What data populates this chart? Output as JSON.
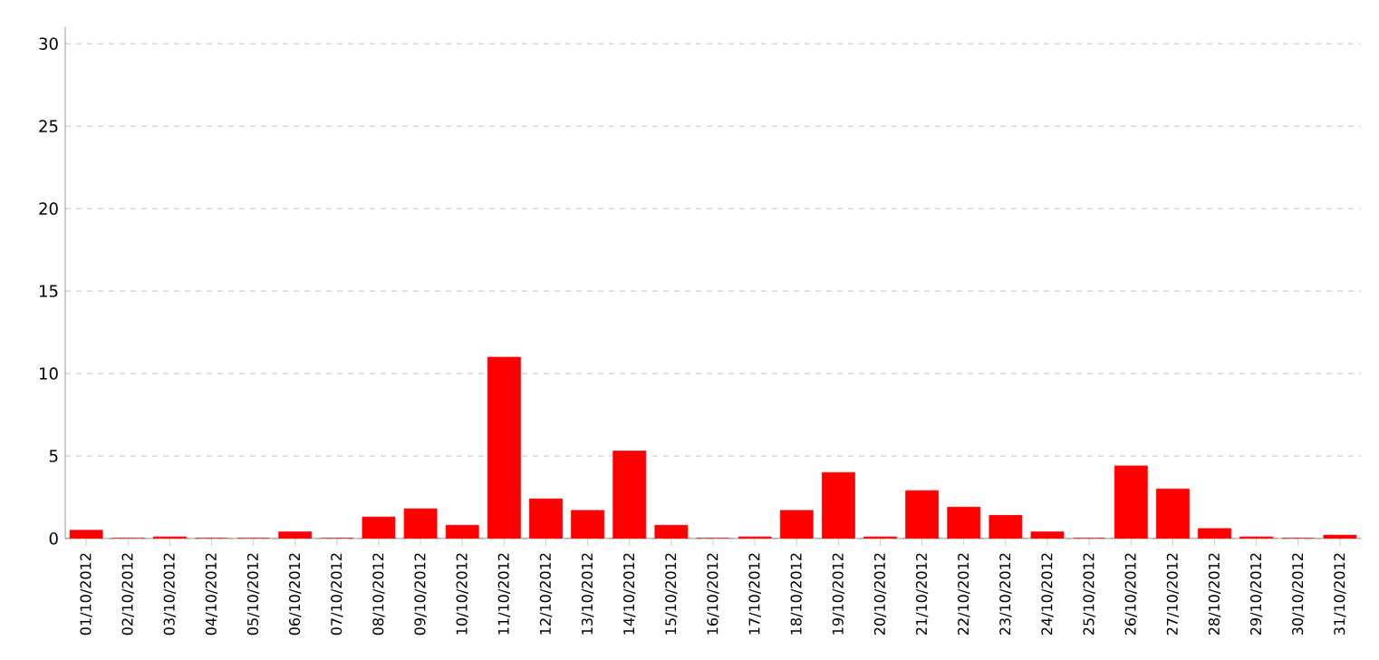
{
  "chart_data": {
    "type": "bar",
    "categories": [
      "01/10/2012",
      "02/10/2012",
      "03/10/2012",
      "04/10/2012",
      "05/10/2012",
      "06/10/2012",
      "07/10/2012",
      "08/10/2012",
      "09/10/2012",
      "10/10/2012",
      "11/10/2012",
      "12/10/2012",
      "13/10/2012",
      "14/10/2012",
      "15/10/2012",
      "16/10/2012",
      "17/10/2012",
      "18/10/2012",
      "19/10/2012",
      "20/10/2012",
      "21/10/2012",
      "22/10/2012",
      "23/10/2012",
      "24/10/2012",
      "25/10/2012",
      "26/10/2012",
      "27/10/2012",
      "28/10/2012",
      "29/10/2012",
      "30/10/2012",
      "31/10/2012"
    ],
    "values": [
      0.5,
      0,
      0.1,
      0,
      0,
      0.4,
      0,
      1.3,
      1.8,
      0.8,
      11.0,
      2.4,
      1.7,
      5.3,
      0.8,
      0,
      0.1,
      1.7,
      4.0,
      0.1,
      2.9,
      1.9,
      1.4,
      0.4,
      0,
      4.4,
      3.0,
      0.6,
      0.1,
      0,
      0.2
    ],
    "color": "#ff0000",
    "ylim": [
      0,
      31
    ],
    "yticks": [
      0,
      5,
      10,
      15,
      20,
      25,
      30
    ],
    "grid": "y"
  }
}
